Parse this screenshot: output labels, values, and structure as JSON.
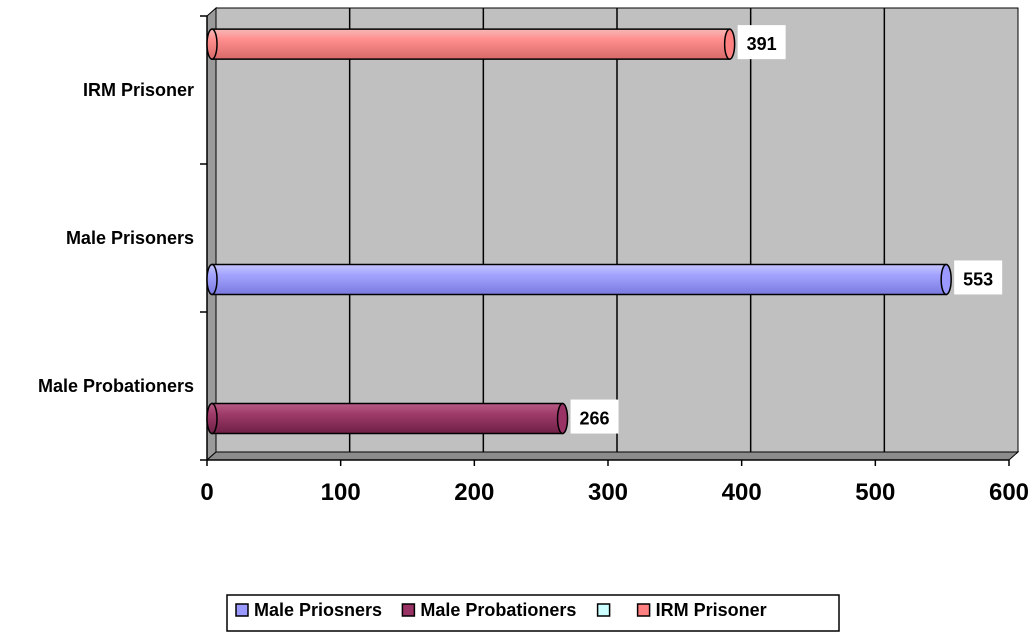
{
  "chart_data": {
    "type": "bar",
    "orientation": "horizontal",
    "style": "3d-cylinder",
    "categories": [
      "Male Probationers",
      "Male Prisoners",
      "IRM Prisoner"
    ],
    "series": [
      {
        "name": "Male Priosners",
        "color": "#9999FF",
        "values": [
          null,
          553,
          null
        ]
      },
      {
        "name": "Male Probationers",
        "color": "#993366",
        "values": [
          266,
          null,
          null
        ]
      },
      {
        "name": "",
        "color": "#CCFFFF",
        "values": [
          null,
          null,
          null
        ]
      },
      {
        "name": "IRM Prisoner",
        "color": "#FF8080",
        "values": [
          null,
          null,
          391
        ]
      }
    ],
    "data_labels": [
      "391",
      "553",
      "266"
    ],
    "x_ticks": [
      "0",
      "100",
      "200",
      "300",
      "400",
      "500",
      "600"
    ],
    "xlim": [
      0,
      600
    ],
    "title": "",
    "xlabel": "",
    "ylabel": "",
    "grid": true,
    "plot_area_color": "#C0C0C0",
    "legend_position": "bottom"
  }
}
